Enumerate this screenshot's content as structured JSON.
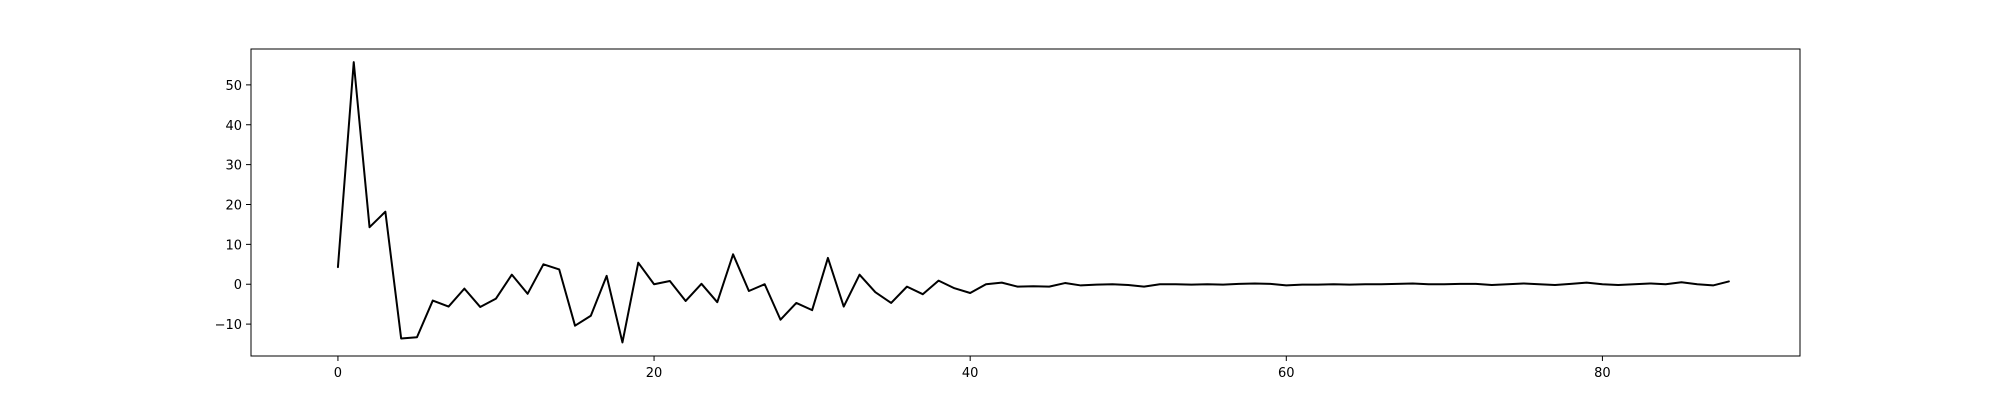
{
  "chart_data": {
    "type": "line",
    "title": "",
    "xlabel": "",
    "ylabel": "",
    "xlim": [
      -5.5,
      92.5
    ],
    "ylim": [
      -18,
      59
    ],
    "xticks": [
      0,
      20,
      40,
      60,
      80
    ],
    "yticks": [
      -10,
      0,
      10,
      20,
      30,
      40,
      50
    ],
    "grid": false,
    "legend": "none",
    "line_color": "#000000",
    "x": [
      0,
      1,
      2,
      3,
      4,
      5,
      6,
      7,
      8,
      9,
      10,
      11,
      12,
      13,
      14,
      15,
      16,
      17,
      18,
      19,
      20,
      21,
      22,
      23,
      24,
      25,
      26,
      27,
      28,
      29,
      30,
      31,
      32,
      33,
      34,
      35,
      36,
      37,
      38,
      39,
      40,
      41,
      42,
      43,
      44,
      45,
      46,
      47,
      48,
      49,
      50,
      51,
      52,
      53,
      54,
      55,
      56,
      57,
      58,
      59,
      60,
      61,
      62,
      63,
      64,
      65,
      66,
      67,
      68,
      69,
      70,
      71,
      72,
      73,
      74,
      75,
      76,
      77,
      78,
      79,
      80,
      81,
      82,
      83,
      84,
      85,
      86,
      87,
      88
    ],
    "y": [
      4.3,
      55.7,
      14.3,
      18.2,
      -13.6,
      -13.3,
      -4.1,
      -5.6,
      -1.1,
      -5.7,
      -3.6,
      2.4,
      -2.4,
      5.0,
      3.7,
      -10.4,
      -7.9,
      2.1,
      -14.6,
      5.4,
      0.0,
      0.8,
      -4.2,
      0.1,
      -4.5,
      7.5,
      -1.7,
      0.0,
      -8.9,
      -4.7,
      -6.5,
      6.6,
      -5.6,
      2.4,
      -2.0,
      -4.7,
      -0.6,
      -2.5,
      0.9,
      -1.0,
      -2.2,
      0.0,
      0.4,
      -0.6,
      -0.5,
      -0.6,
      0.3,
      -0.3,
      -0.1,
      0.0,
      -0.2,
      -0.6,
      0.0,
      0.0,
      -0.1,
      0.0,
      -0.1,
      0.1,
      0.2,
      0.1,
      -0.3,
      -0.1,
      -0.1,
      0.0,
      -0.1,
      0.0,
      0.0,
      0.1,
      0.2,
      0.0,
      0.0,
      0.1,
      0.1,
      -0.2,
      0.0,
      0.2,
      0.0,
      -0.2,
      0.1,
      0.4,
      0.0,
      -0.2,
      0.0,
      0.2,
      0.0,
      0.5,
      0.0,
      -0.3,
      0.7
    ]
  }
}
